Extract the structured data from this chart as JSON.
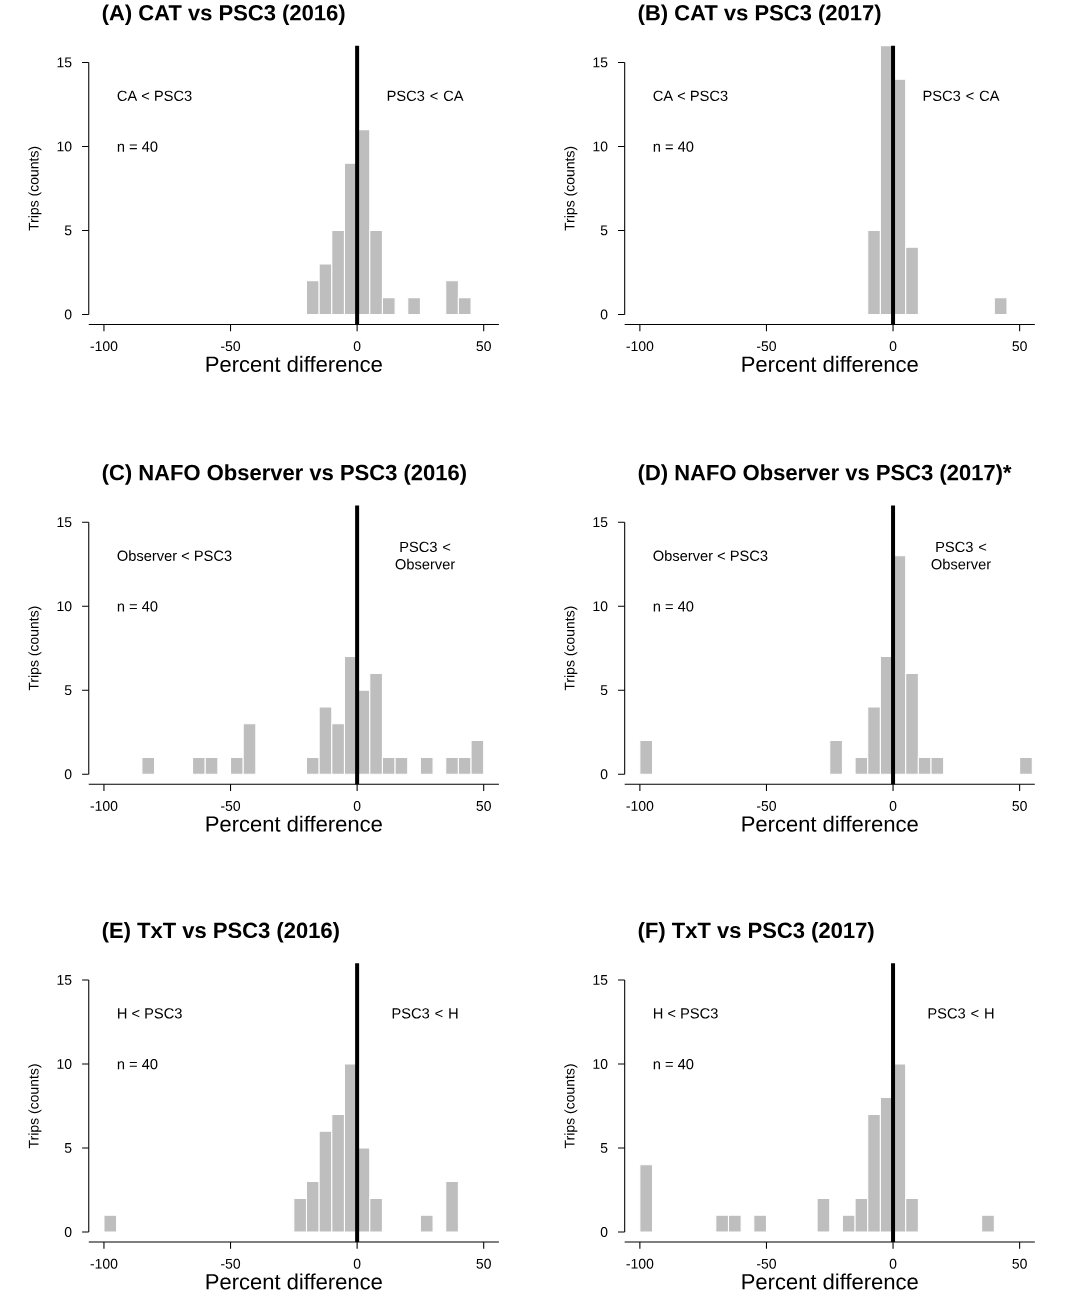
{
  "chart_data": [
    {
      "type": "histogram",
      "title": "(A) CAT vs PSC3 (2016)",
      "xlabel": "Percent difference",
      "ylabel": "Trips (counts)",
      "bins": [
        -20,
        -15,
        -10,
        -5,
        0,
        5,
        10,
        15,
        20,
        25,
        30,
        35,
        40,
        45
      ],
      "values": [
        2,
        3,
        5,
        9,
        11,
        5,
        1,
        0,
        1,
        0,
        0,
        2,
        1
      ],
      "color": "#bebebe",
      "xlim": [
        -106,
        56
      ],
      "ylim": [
        -0.6,
        16
      ],
      "xticks": [
        -100,
        -50,
        0,
        50
      ],
      "yticks": [
        0,
        5,
        10,
        15
      ],
      "ref_lines": [
        {
          "axis": "x",
          "value": 0,
          "color": "#000000"
        }
      ],
      "annotations": [
        "CA < PSC3",
        "PSC3 < CA",
        "n = 40"
      ]
    },
    {
      "type": "histogram",
      "title": "(B) CAT vs PSC3 (2017)",
      "xlabel": "Percent difference",
      "ylabel": "Trips (counts)",
      "bins": [
        -10,
        -5,
        0,
        5,
        10,
        15,
        20,
        25,
        30,
        35,
        40,
        45
      ],
      "values": [
        5,
        16,
        14,
        4,
        0,
        0,
        0,
        0,
        0,
        0,
        1
      ],
      "color": "#bebebe",
      "xlim": [
        -106,
        56
      ],
      "ylim": [
        -0.6,
        16
      ],
      "xticks": [
        -100,
        -50,
        0,
        50
      ],
      "yticks": [
        0,
        5,
        10,
        15
      ],
      "ref_lines": [
        {
          "axis": "x",
          "value": 0,
          "color": "#000000"
        }
      ],
      "annotations": [
        "CA < PSC3",
        "PSC3 < CA",
        "n = 40"
      ]
    },
    {
      "type": "histogram",
      "title": "(C) NAFO Observer vs PSC3 (2016)",
      "xlabel": "Percent difference",
      "ylabel": "Trips (counts)",
      "bins": [
        -85,
        -80,
        -75,
        -70,
        -65,
        -60,
        -55,
        -50,
        -45,
        -40,
        -35,
        -30,
        -25,
        -20,
        -15,
        -10,
        -5,
        0,
        5,
        10,
        15,
        20,
        25,
        30,
        35,
        40,
        45,
        50
      ],
      "values": [
        1,
        0,
        0,
        0,
        1,
        1,
        0,
        1,
        3,
        0,
        0,
        0,
        0,
        1,
        4,
        3,
        7,
        5,
        6,
        1,
        1,
        0,
        1,
        0,
        1,
        1,
        2
      ],
      "color": "#bebebe",
      "xlim": [
        -106,
        56
      ],
      "ylim": [
        -0.6,
        16
      ],
      "xticks": [
        -100,
        -50,
        0,
        50
      ],
      "yticks": [
        0,
        5,
        10,
        15
      ],
      "ref_lines": [
        {
          "axis": "x",
          "value": 0,
          "color": "#000000"
        }
      ],
      "annotations": [
        "Observer < PSC3",
        "PSC3 < Observer",
        "n = 40"
      ]
    },
    {
      "type": "histogram",
      "title": "(D) NAFO Observer vs PSC3 (2017)*",
      "xlabel": "Percent difference",
      "ylabel": "Trips (counts)",
      "bins": [
        -100,
        -95,
        -90,
        -85,
        -80,
        -75,
        -70,
        -65,
        -60,
        -55,
        -50,
        -45,
        -40,
        -35,
        -30,
        -25,
        -20,
        -15,
        -10,
        -5,
        0,
        5,
        10,
        15,
        20,
        25,
        30,
        35,
        40,
        45,
        50,
        55
      ],
      "values": [
        2,
        0,
        0,
        0,
        0,
        0,
        0,
        0,
        0,
        0,
        0,
        0,
        0,
        0,
        0,
        2,
        0,
        1,
        4,
        7,
        13,
        6,
        1,
        1,
        0,
        0,
        0,
        0,
        0,
        0,
        1
      ],
      "color": "#bebebe",
      "xlim": [
        -106,
        56
      ],
      "ylim": [
        -0.6,
        16
      ],
      "xticks": [
        -100,
        -50,
        0,
        50
      ],
      "yticks": [
        0,
        5,
        10,
        15
      ],
      "ref_lines": [
        {
          "axis": "x",
          "value": 0,
          "color": "#000000"
        }
      ],
      "annotations": [
        "Observer < PSC3",
        "PSC3 < Observer",
        "n = 40"
      ]
    },
    {
      "type": "histogram",
      "title": "(E) TxT vs PSC3 (2016)",
      "xlabel": "Percent difference",
      "ylabel": "Trips (counts)",
      "bins": [
        -100,
        -95,
        -90,
        -85,
        -80,
        -75,
        -70,
        -65,
        -60,
        -55,
        -50,
        -45,
        -40,
        -35,
        -30,
        -25,
        -20,
        -15,
        -10,
        -5,
        0,
        5,
        10,
        15,
        20,
        25,
        30,
        35,
        40
      ],
      "values": [
        1,
        0,
        0,
        0,
        0,
        0,
        0,
        0,
        0,
        0,
        0,
        0,
        0,
        0,
        0,
        2,
        3,
        6,
        7,
        10,
        5,
        2,
        0,
        0,
        0,
        1,
        0,
        3
      ],
      "color": "#bebebe",
      "xlim": [
        -106,
        56
      ],
      "ylim": [
        -0.6,
        16
      ],
      "xticks": [
        -100,
        -50,
        0,
        50
      ],
      "yticks": [
        0,
        5,
        10,
        15
      ],
      "ref_lines": [
        {
          "axis": "x",
          "value": 0,
          "color": "#000000"
        }
      ],
      "annotations": [
        "H < PSC3",
        "PSC3 < H",
        "n = 40"
      ]
    },
    {
      "type": "histogram",
      "title": "(F) TxT vs PSC3 (2017)",
      "xlabel": "Percent difference",
      "ylabel": "Trips (counts)",
      "bins": [
        -100,
        -95,
        -90,
        -85,
        -80,
        -75,
        -70,
        -65,
        -60,
        -55,
        -50,
        -45,
        -40,
        -35,
        -30,
        -25,
        -20,
        -15,
        -10,
        -5,
        0,
        5,
        10,
        15,
        20,
        25,
        30,
        35,
        40
      ],
      "values": [
        4,
        0,
        0,
        0,
        0,
        0,
        1,
        1,
        0,
        1,
        0,
        0,
        0,
        0,
        2,
        0,
        1,
        2,
        7,
        8,
        10,
        2,
        0,
        0,
        0,
        0,
        0,
        1
      ],
      "color": "#bebebe",
      "xlim": [
        -106,
        56
      ],
      "ylim": [
        -0.6,
        16
      ],
      "xticks": [
        -100,
        -50,
        0,
        50
      ],
      "yticks": [
        0,
        5,
        10,
        15
      ],
      "ref_lines": [
        {
          "axis": "x",
          "value": 0,
          "color": "#000000"
        }
      ],
      "annotations": [
        "H < PSC3",
        "PSC3 < H",
        "n = 40"
      ]
    }
  ]
}
